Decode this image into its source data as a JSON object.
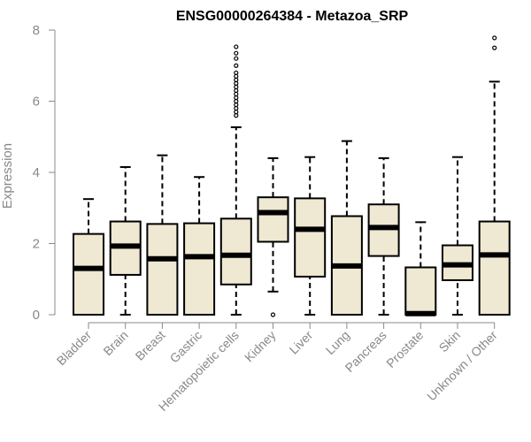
{
  "chart_data": {
    "type": "boxplot",
    "title": "ENSG00000264384 - Metazoa_SRP",
    "xlabel": "",
    "ylabel": "Expression",
    "ylim": [
      0,
      8
    ],
    "yticks": [
      0,
      2,
      4,
      6,
      8
    ],
    "grid": false,
    "box_color": "#efe8d2",
    "categories": [
      "Bladder",
      "Brain",
      "Breast",
      "Gastric",
      "Hematopoietic cells",
      "Kidney",
      "Liver",
      "Lung",
      "Pancreas",
      "Prostate",
      "Skin",
      "Unknown / Other"
    ],
    "boxes": [
      {
        "min": 0.0,
        "q1": 0.0,
        "median": 1.3,
        "q3": 2.27,
        "max": 3.25,
        "outliers": []
      },
      {
        "min": 0.0,
        "q1": 1.12,
        "median": 1.93,
        "q3": 2.62,
        "max": 4.15,
        "outliers": []
      },
      {
        "min": 0.0,
        "q1": 0.0,
        "median": 1.57,
        "q3": 2.55,
        "max": 4.48,
        "outliers": []
      },
      {
        "min": 0.0,
        "q1": 0.0,
        "median": 1.63,
        "q3": 2.57,
        "max": 3.87,
        "outliers": []
      },
      {
        "min": 0.0,
        "q1": 0.85,
        "median": 1.67,
        "q3": 2.7,
        "max": 5.27,
        "outliers": [
          5.6,
          5.7,
          5.8,
          5.9,
          6.0,
          6.1,
          6.2,
          6.3,
          6.4,
          6.5,
          6.6,
          6.7,
          6.8,
          7.0,
          7.2,
          7.35,
          7.53
        ]
      },
      {
        "min": 0.65,
        "q1": 2.05,
        "median": 2.87,
        "q3": 3.3,
        "max": 4.4,
        "outliers": [
          0.0
        ]
      },
      {
        "min": 0.0,
        "q1": 1.07,
        "median": 2.4,
        "q3": 3.27,
        "max": 4.43,
        "outliers": []
      },
      {
        "min": 0.0,
        "q1": 0.0,
        "median": 1.37,
        "q3": 2.77,
        "max": 4.88,
        "outliers": []
      },
      {
        "min": 0.0,
        "q1": 1.65,
        "median": 2.45,
        "q3": 3.1,
        "max": 4.4,
        "outliers": []
      },
      {
        "min": 0.0,
        "q1": 0.0,
        "median": 0.03,
        "q3": 1.33,
        "max": 2.6,
        "outliers": []
      },
      {
        "min": 0.0,
        "q1": 0.97,
        "median": 1.4,
        "q3": 1.95,
        "max": 4.43,
        "outliers": []
      },
      {
        "min": 0.0,
        "q1": 0.0,
        "median": 1.68,
        "q3": 2.62,
        "max": 6.55,
        "outliers": [
          7.5,
          7.78
        ]
      }
    ]
  }
}
